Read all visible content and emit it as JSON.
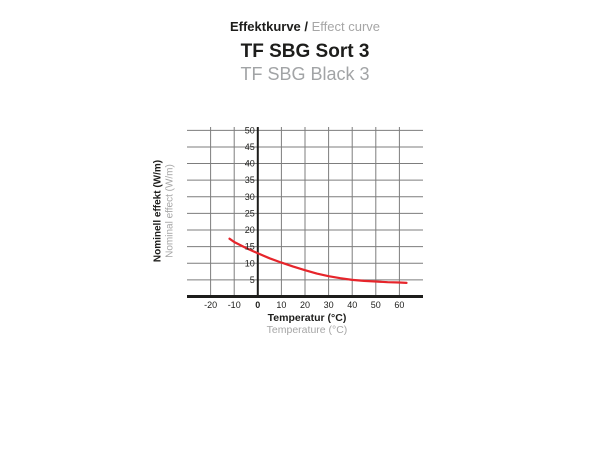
{
  "header": {
    "section_title_no": "Effektkurve /",
    "section_title_en": " Effect curve",
    "product_name_no": "TF SBG Sort 3",
    "product_name_en": "TF SBG Black 3"
  },
  "chart_data": {
    "type": "line",
    "title": "Effektkurve / Effect curve — TF SBG Sort 3 (TF SBG Black 3)",
    "xlabel_no": "Temperatur (°C)",
    "xlabel_en": "Temperature (°C)",
    "ylabel_no": "Nominell effekt (W/m)",
    "ylabel_en": "Nominal effect (W/m)",
    "xlim": [
      -30,
      70
    ],
    "ylim": [
      0,
      51
    ],
    "x_ticks": [
      -20,
      -10,
      0,
      10,
      20,
      30,
      40,
      50,
      60
    ],
    "y_ticks": [
      5,
      10,
      15,
      20,
      25,
      30,
      35,
      40,
      45,
      50
    ],
    "grid": true,
    "legend": "none",
    "colors": {
      "gridline": "#7d7d7d",
      "axis": "#1d1d1b",
      "tick_text": "#1d1d1b",
      "curve": "#e6252b"
    },
    "series": [
      {
        "name": "TF SBG Sort 3",
        "points": [
          [
            -12,
            17.4
          ],
          [
            -10,
            16.4
          ],
          [
            -5,
            14.6
          ],
          [
            0,
            13.0
          ],
          [
            5,
            11.5
          ],
          [
            10,
            10.2
          ],
          [
            15,
            9.0
          ],
          [
            20,
            7.9
          ],
          [
            25,
            6.9
          ],
          [
            30,
            6.1
          ],
          [
            35,
            5.5
          ],
          [
            40,
            5.0
          ],
          [
            45,
            4.7
          ],
          [
            50,
            4.5
          ],
          [
            55,
            4.3
          ],
          [
            60,
            4.2
          ],
          [
            63,
            4.1
          ]
        ]
      }
    ]
  }
}
